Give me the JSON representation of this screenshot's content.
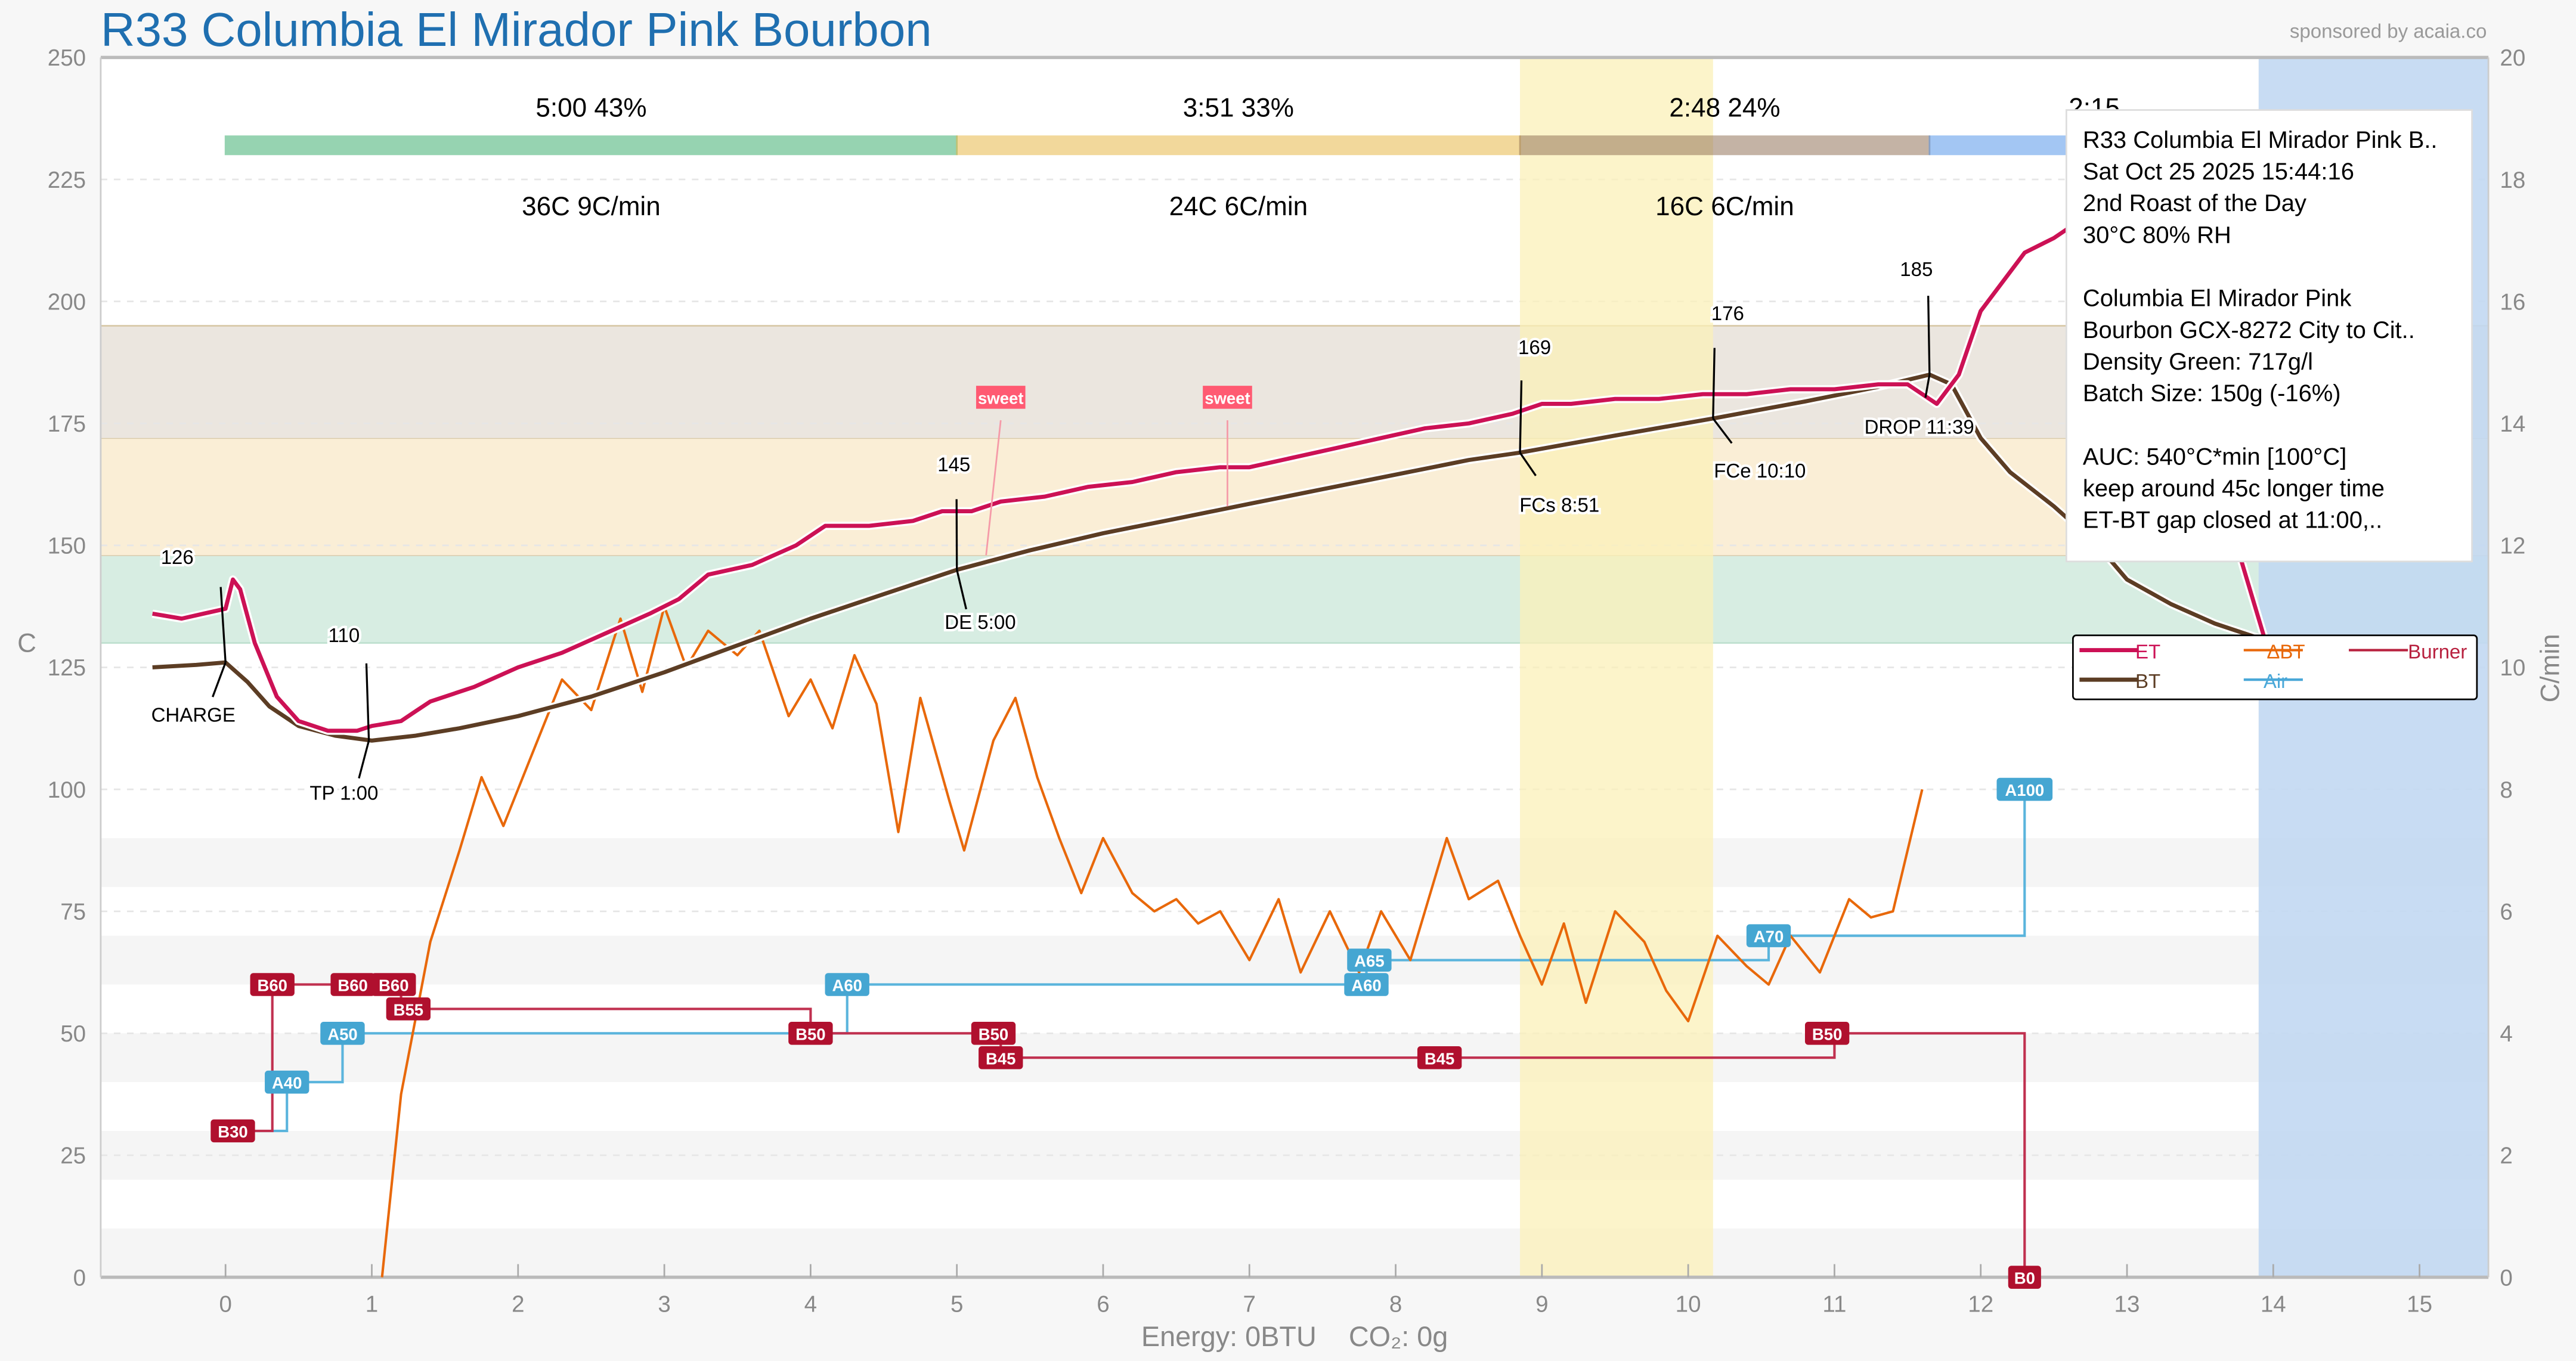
{
  "title": "R33 Columbia El Mirador Pink Bourbon",
  "sponsor": "sponsored by acaia.co",
  "footer": {
    "energy": "Energy: 0BTU",
    "co2": "CO₂: 0g"
  },
  "phases": [
    {
      "time_pct": "5:00  43%",
      "stats": "36C  9C/min",
      "color": "#2fa866",
      "start": 0,
      "end": 5.0
    },
    {
      "time_pct": "3:51  33%",
      "stats": "24C  6C/min",
      "color": "#e7b33a",
      "start": 5.0,
      "end": 8.85
    },
    {
      "time_pct": "2:48  24%",
      "stats": "16C  6C/min",
      "color": "#8b6a4e",
      "start": 8.85,
      "end": 11.65
    },
    {
      "time_pct": "2:15",
      "stats": "",
      "color": "#4a8fe8",
      "start": 11.65,
      "end": 13.9
    }
  ],
  "info_box": [
    "R33 Columbia El Mirador Pink B..",
    "Sat Oct 25 2025 15:44:16",
    "2nd Roast of the Day",
    "30°C  80% RH",
    "",
    "Columbia El Mirador Pink",
    "  Bourbon GCX-8272 City to Cit..",
    "Density Green: 717g/l",
    "Batch Size: 150g (-16%)",
    "",
    "AUC: 540°C*min [100°C]",
    "keep around 45c longer time",
    "  ET-BT gap closed at 11:00,.."
  ],
  "legend": [
    {
      "label": "ET",
      "color": "#cc1155"
    },
    {
      "label": "BT",
      "color": "#5c3d24"
    },
    {
      "label": "ΔBT",
      "color": "#e8680a"
    },
    {
      "label": "Air",
      "color": "#4aa8d8"
    },
    {
      "label": "Burner",
      "color": "#b8213f"
    }
  ],
  "chart_data": {
    "type": "line",
    "xlabel": "",
    "ylabel": "C",
    "y2label": "C/min",
    "xlim": [
      -0.85,
      15.47
    ],
    "ylim": [
      0,
      250
    ],
    "y2lim": [
      0,
      20
    ],
    "xticks": [
      "0",
      "1",
      "2",
      "3",
      "4",
      "5",
      "6",
      "7",
      "8",
      "9",
      "10",
      "11",
      "12",
      "13",
      "14",
      "15"
    ],
    "yticks": [
      "0",
      "25",
      "50",
      "75",
      "100",
      "125",
      "150",
      "175",
      "200",
      "225",
      "250"
    ],
    "y2ticks": [
      "0",
      "2",
      "4",
      "6",
      "8",
      "10",
      "12",
      "14",
      "16",
      "18",
      "20"
    ],
    "bands": [
      {
        "from": 130,
        "to": 148,
        "color": "#d7ede2"
      },
      {
        "from": 148,
        "to": 172,
        "color": "#faeed6"
      },
      {
        "from": 172,
        "to": 195,
        "color": "#ebe6df"
      }
    ],
    "fc_window": {
      "from": 8.85,
      "to": 10.17,
      "color": "#fbf0b8"
    },
    "cooling_window": {
      "from": 13.9,
      "color": "#c2d8f2"
    },
    "series": [
      {
        "name": "ET",
        "axis": "left",
        "points": [
          [
            -0.5,
            136
          ],
          [
            -0.3,
            135
          ],
          [
            -0.15,
            136
          ],
          [
            0,
            137
          ],
          [
            0.05,
            143
          ],
          [
            0.1,
            141
          ],
          [
            0.2,
            130
          ],
          [
            0.35,
            119
          ],
          [
            0.5,
            114
          ],
          [
            0.7,
            112
          ],
          [
            0.9,
            112
          ],
          [
            1.0,
            113
          ],
          [
            1.2,
            114
          ],
          [
            1.3,
            116
          ],
          [
            1.4,
            118
          ],
          [
            1.7,
            121
          ],
          [
            2.0,
            125
          ],
          [
            2.3,
            128
          ],
          [
            2.6,
            132
          ],
          [
            2.9,
            136
          ],
          [
            3.1,
            139
          ],
          [
            3.3,
            144
          ],
          [
            3.6,
            146
          ],
          [
            3.9,
            150
          ],
          [
            4.1,
            154
          ],
          [
            4.4,
            154
          ],
          [
            4.7,
            155
          ],
          [
            4.9,
            157
          ],
          [
            5.1,
            157
          ],
          [
            5.3,
            159
          ],
          [
            5.6,
            160
          ],
          [
            5.9,
            162
          ],
          [
            6.2,
            163
          ],
          [
            6.5,
            165
          ],
          [
            6.8,
            166
          ],
          [
            7.0,
            166
          ],
          [
            7.3,
            168
          ],
          [
            7.6,
            170
          ],
          [
            7.9,
            172
          ],
          [
            8.2,
            174
          ],
          [
            8.5,
            175
          ],
          [
            8.8,
            177
          ],
          [
            9.0,
            179
          ],
          [
            9.2,
            179
          ],
          [
            9.5,
            180
          ],
          [
            9.8,
            180
          ],
          [
            10.1,
            181
          ],
          [
            10.4,
            181
          ],
          [
            10.7,
            182
          ],
          [
            11.0,
            182
          ],
          [
            11.3,
            183
          ],
          [
            11.5,
            183
          ],
          [
            11.7,
            179
          ],
          [
            11.85,
            185
          ],
          [
            12.0,
            198
          ],
          [
            12.15,
            204
          ],
          [
            12.3,
            210
          ],
          [
            12.5,
            213
          ],
          [
            12.65,
            216
          ],
          [
            12.8,
            210
          ],
          [
            13.0,
            200
          ],
          [
            13.3,
            185
          ],
          [
            13.6,
            165
          ],
          [
            13.8,
            145
          ],
          [
            13.95,
            130
          ],
          [
            14.1,
            128
          ]
        ]
      },
      {
        "name": "BT",
        "axis": "left",
        "points": [
          [
            -0.5,
            125
          ],
          [
            -0.2,
            125.5
          ],
          [
            0,
            126
          ],
          [
            0.15,
            122
          ],
          [
            0.3,
            117
          ],
          [
            0.5,
            113
          ],
          [
            0.75,
            111
          ],
          [
            1.0,
            110
          ],
          [
            1.3,
            111
          ],
          [
            1.6,
            112.5
          ],
          [
            2.0,
            115
          ],
          [
            2.5,
            119
          ],
          [
            3.0,
            124
          ],
          [
            3.5,
            129.5
          ],
          [
            4.0,
            135
          ],
          [
            4.5,
            140
          ],
          [
            5.0,
            145
          ],
          [
            5.5,
            149
          ],
          [
            6.0,
            152.5
          ],
          [
            6.5,
            155.5
          ],
          [
            7.0,
            158.5
          ],
          [
            7.5,
            161.5
          ],
          [
            8.0,
            164.5
          ],
          [
            8.5,
            167.5
          ],
          [
            8.85,
            169
          ],
          [
            9.5,
            172.5
          ],
          [
            10.17,
            176
          ],
          [
            10.8,
            179.5
          ],
          [
            11.3,
            182.5
          ],
          [
            11.65,
            185
          ],
          [
            11.8,
            183
          ],
          [
            12.0,
            172
          ],
          [
            12.2,
            165
          ],
          [
            12.5,
            158
          ],
          [
            12.8,
            150
          ],
          [
            13.0,
            143
          ],
          [
            13.3,
            138
          ],
          [
            13.6,
            134
          ],
          [
            13.9,
            131
          ],
          [
            14.1,
            130
          ]
        ]
      },
      {
        "name": "ΔBT",
        "axis": "right",
        "points": [
          [
            1.07,
            0
          ],
          [
            1.2,
            3
          ],
          [
            1.4,
            5.5
          ],
          [
            1.6,
            7
          ],
          [
            1.75,
            8.2
          ],
          [
            1.9,
            7.4
          ],
          [
            2.1,
            8.6
          ],
          [
            2.3,
            9.8
          ],
          [
            2.5,
            9.3
          ],
          [
            2.7,
            10.8
          ],
          [
            2.85,
            9.6
          ],
          [
            3.0,
            11.0
          ],
          [
            3.15,
            10.0
          ],
          [
            3.3,
            10.6
          ],
          [
            3.5,
            10.2
          ],
          [
            3.65,
            10.6
          ],
          [
            3.85,
            9.2
          ],
          [
            4.0,
            9.8
          ],
          [
            4.15,
            9.0
          ],
          [
            4.3,
            10.2
          ],
          [
            4.45,
            9.4
          ],
          [
            4.6,
            7.3
          ],
          [
            4.75,
            9.5
          ],
          [
            4.95,
            7.8
          ],
          [
            5.05,
            7.0
          ],
          [
            5.25,
            8.8
          ],
          [
            5.4,
            9.5
          ],
          [
            5.55,
            8.2
          ],
          [
            5.7,
            7.2
          ],
          [
            5.85,
            6.3
          ],
          [
            6.0,
            7.2
          ],
          [
            6.2,
            6.3
          ],
          [
            6.35,
            6.0
          ],
          [
            6.5,
            6.2
          ],
          [
            6.65,
            5.8
          ],
          [
            6.8,
            6.0
          ],
          [
            7.0,
            5.2
          ],
          [
            7.2,
            6.2
          ],
          [
            7.35,
            5.0
          ],
          [
            7.55,
            6.0
          ],
          [
            7.75,
            5.0
          ],
          [
            7.9,
            6.0
          ],
          [
            8.1,
            5.2
          ],
          [
            8.35,
            7.2
          ],
          [
            8.5,
            6.2
          ],
          [
            8.7,
            6.5
          ],
          [
            8.85,
            5.6
          ],
          [
            9.0,
            4.8
          ],
          [
            9.15,
            5.8
          ],
          [
            9.3,
            4.5
          ],
          [
            9.5,
            6.0
          ],
          [
            9.7,
            5.5
          ],
          [
            9.85,
            4.7
          ],
          [
            10.0,
            4.2
          ],
          [
            10.2,
            5.6
          ],
          [
            10.4,
            5.1
          ],
          [
            10.55,
            4.8
          ],
          [
            10.7,
            5.6
          ],
          [
            10.9,
            5.0
          ],
          [
            11.1,
            6.2
          ],
          [
            11.25,
            5.9
          ],
          [
            11.4,
            6.0
          ],
          [
            11.6,
            8.0
          ]
        ]
      }
    ],
    "burner_steps": [
      [
        0,
        30
      ],
      [
        0.32,
        60
      ],
      [
        1.2,
        55
      ],
      [
        4.0,
        50
      ],
      [
        5.3,
        45
      ],
      [
        11.0,
        50
      ],
      [
        12.3,
        0
      ]
    ],
    "air_steps": [
      [
        0,
        30
      ],
      [
        0.42,
        40
      ],
      [
        0.8,
        50
      ],
      [
        4.25,
        60
      ],
      [
        7.8,
        65
      ],
      [
        10.55,
        70
      ],
      [
        12.3,
        100
      ]
    ],
    "burner_labels": [
      {
        "t": 0.05,
        "v": 30,
        "text": "B30"
      },
      {
        "t": 0.32,
        "v": 60,
        "text": "B60"
      },
      {
        "t": 0.87,
        "v": 60,
        "text": "B60"
      },
      {
        "t": 1.15,
        "v": 60,
        "text": "B60"
      },
      {
        "t": 1.25,
        "v": 55,
        "text": "B55"
      },
      {
        "t": 4.0,
        "v": 50,
        "text": "B50"
      },
      {
        "t": 5.25,
        "v": 50,
        "text": "B50"
      },
      {
        "t": 5.3,
        "v": 45,
        "text": "B45"
      },
      {
        "t": 8.3,
        "v": 45,
        "text": "B45"
      },
      {
        "t": 10.95,
        "v": 50,
        "text": "B50"
      },
      {
        "t": 12.3,
        "v": 0,
        "text": "B0"
      }
    ],
    "air_labels": [
      {
        "t": 0.42,
        "v": 40,
        "text": "A40"
      },
      {
        "t": 0.8,
        "v": 50,
        "text": "A50"
      },
      {
        "t": 4.25,
        "v": 60,
        "text": "A60"
      },
      {
        "t": 7.8,
        "v": 60,
        "text": "A60"
      },
      {
        "t": 7.82,
        "v": 65,
        "text": "A65"
      },
      {
        "t": 10.55,
        "v": 70,
        "text": "A70"
      },
      {
        "t": 12.3,
        "v": 100,
        "text": "A100"
      }
    ],
    "events": [
      {
        "t": 0,
        "v": 126,
        "value": "126",
        "label": "CHARGE",
        "vdx": -0.33,
        "vdy": 18,
        "ldx": -0.22,
        "ldy": -13
      },
      {
        "t": 0.98,
        "v": 110,
        "value": "110",
        "label": "TP 1:00",
        "vdx": -0.17,
        "vdy": 17,
        "ldx": -0.17,
        "ldy": -11
      },
      {
        "t": 5.0,
        "v": 145,
        "value": "145",
        "label": "DE 5:00",
        "vdx": -0.02,
        "vdy": 21,
        "ldx": 0.16,
        "ldy": -10
      },
      {
        "t": 8.85,
        "v": 169,
        "value": "169",
        "label": "FCs 8:51",
        "vdx": 0.1,
        "vdy": 20,
        "ldx": 0.27,
        "ldy": -20
      },
      {
        "t": 10.17,
        "v": 176,
        "value": "176",
        "label": "FCe 10:10",
        "vdx": 0.1,
        "vdy": 21,
        "ldx": 0.32,
        "ldy": -19
      },
      {
        "t": 11.65,
        "v": 185,
        "value": "185",
        "label": "DROP 11:39",
        "vdx": -0.09,
        "vdy": 16,
        "ldx": -0.07,
        "ldy": -20
      }
    ],
    "notes": [
      {
        "t": 5.2,
        "v": 148,
        "text": "sweet",
        "label_t": 5.3,
        "label_v": 178
      },
      {
        "t": 6.85,
        "v": 158,
        "text": "sweet",
        "label_t": 6.85,
        "label_v": 178
      }
    ]
  }
}
